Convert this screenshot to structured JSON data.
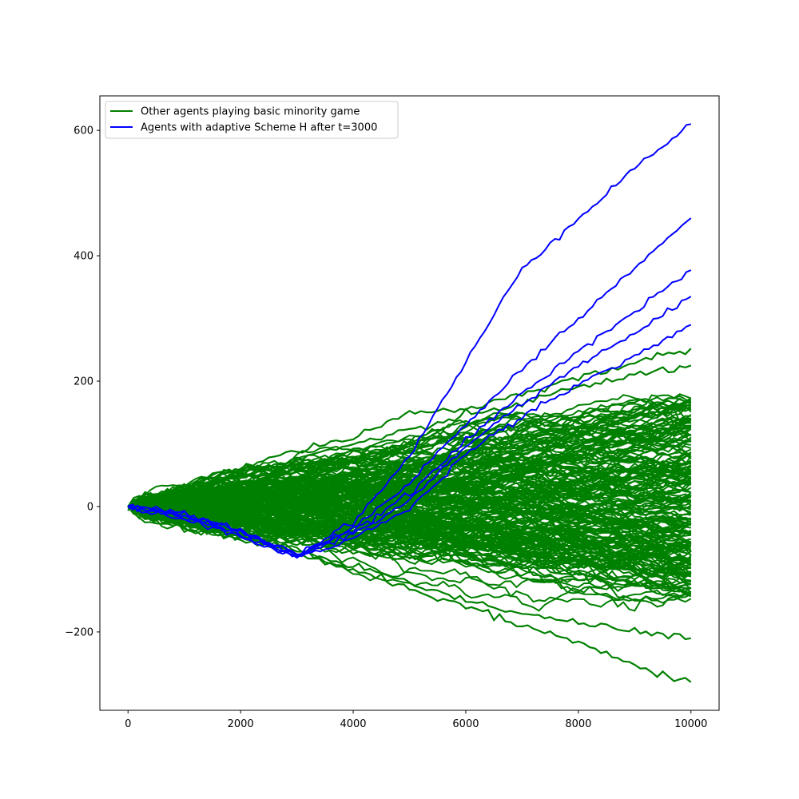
{
  "chart_data": {
    "type": "line",
    "title": "",
    "xlabel": "",
    "ylabel": "",
    "xlim": [
      -500,
      10500
    ],
    "ylim": [
      -325,
      655
    ],
    "x_ticks": [
      0,
      2000,
      4000,
      6000,
      8000,
      10000
    ],
    "x_tick_labels": [
      "0",
      "2000",
      "4000",
      "6000",
      "8000",
      "10000"
    ],
    "y_ticks": [
      -200,
      0,
      200,
      400,
      600
    ],
    "y_tick_labels": [
      "−200",
      "0",
      "200",
      "400",
      "600"
    ],
    "grid": false,
    "legend_position": "top-left",
    "legend": [
      {
        "label": "Other agents playing basic minority game",
        "color": "#008000"
      },
      {
        "label": "Agents with adaptive Scheme H after t=3000",
        "color": "#0000ff"
      }
    ],
    "series_groups": [
      {
        "label": "Other agents playing basic minority game",
        "color": "#008000",
        "approx_count": 200,
        "shape": "fan of random-walk trajectories starting at (0, 0) and spreading roughly as ±sqrt(t)",
        "endpoints_at_x_10000_range": [
          -280,
          252
        ],
        "dense_envelope_at_x_10000": [
          -140,
          165
        ],
        "sample_trajectories": [
          {
            "x": [
              0,
              1000,
              2000,
              3000,
              4000,
              5000,
              6000,
              7000,
              8000,
              9000,
              10000
            ],
            "y": [
              0,
              25,
              60,
              90,
              110,
              150,
              155,
              180,
              205,
              230,
              252
            ]
          },
          {
            "x": [
              0,
              1000,
              2000,
              3000,
              4000,
              5000,
              6000,
              7000,
              8000,
              9000,
              10000
            ],
            "y": [
              0,
              20,
              50,
              75,
              100,
              120,
              145,
              165,
              190,
              210,
              225
            ]
          },
          {
            "x": [
              0,
              1000,
              2000,
              3000,
              4000,
              5000,
              6000,
              7000,
              8000,
              9000,
              10000
            ],
            "y": [
              0,
              -30,
              -55,
              -75,
              -100,
              -130,
              -160,
              -190,
              -215,
              -255,
              -280
            ]
          },
          {
            "x": [
              0,
              1000,
              2000,
              3000,
              4000,
              5000,
              6000,
              7000,
              8000,
              9000,
              10000
            ],
            "y": [
              0,
              -25,
              -45,
              -70,
              -95,
              -120,
              -150,
              -170,
              -185,
              -200,
              -210
            ]
          }
        ]
      },
      {
        "label": "Agents with adaptive Scheme H after t=3000",
        "color": "#0000ff",
        "approx_count": 5,
        "shape": "drift downward until t=3000, then rise roughly linearly",
        "trajectories": [
          {
            "x": [
              0,
              1000,
              2000,
              3000,
              4000,
              5000,
              6000,
              7000,
              8000,
              9000,
              10000
            ],
            "y": [
              0,
              -10,
              -38,
              -75,
              -25,
              80,
              230,
              380,
              460,
              540,
              610
            ]
          },
          {
            "x": [
              0,
              1000,
              2000,
              3000,
              4000,
              5000,
              6000,
              7000,
              8000,
              9000,
              10000
            ],
            "y": [
              0,
              -12,
              -40,
              -78,
              -35,
              40,
              130,
              220,
              300,
              380,
              460
            ]
          },
          {
            "x": [
              0,
              1000,
              2000,
              3000,
              4000,
              5000,
              6000,
              7000,
              8000,
              9000,
              10000
            ],
            "y": [
              0,
              -15,
              -45,
              -80,
              -40,
              20,
              105,
              180,
              250,
              310,
              377
            ]
          },
          {
            "x": [
              0,
              1000,
              2000,
              3000,
              4000,
              5000,
              6000,
              7000,
              8000,
              9000,
              10000
            ],
            "y": [
              0,
              -18,
              -42,
              -76,
              -45,
              10,
              95,
              165,
              225,
              275,
              335
            ]
          },
          {
            "x": [
              0,
              1000,
              2000,
              3000,
              4000,
              5000,
              6000,
              7000,
              8000,
              9000,
              10000
            ],
            "y": [
              0,
              -20,
              -48,
              -82,
              -50,
              -5,
              85,
              145,
              195,
              240,
              290
            ]
          }
        ]
      }
    ]
  }
}
